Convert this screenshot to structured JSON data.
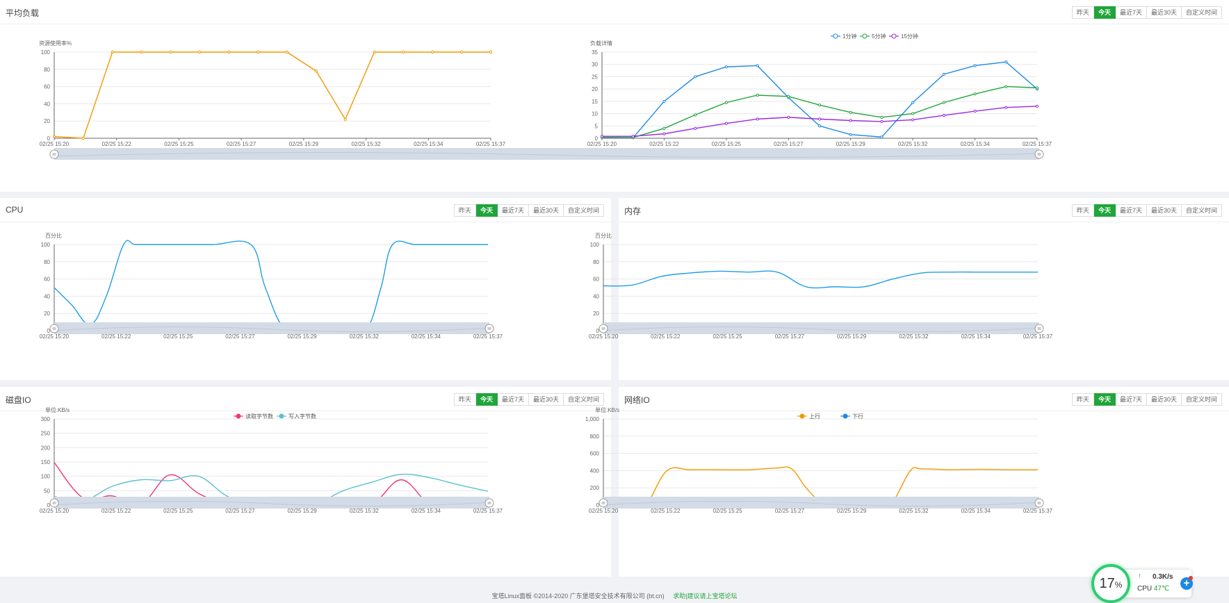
{
  "range_buttons": [
    "昨天",
    "今天",
    "最近7天",
    "最近30天",
    "自定义时间"
  ],
  "active_range": "今天",
  "times": [
    "02/25 15:20",
    "02/25 15:22",
    "02/25 15:25",
    "02/25 15:27",
    "02/25 15:29",
    "02/25 15:32",
    "02/25 15:34",
    "02/25 15:37"
  ],
  "panels": {
    "load": {
      "title": "平均负载"
    },
    "cpu": {
      "title": "CPU"
    },
    "mem": {
      "title": "内存"
    },
    "disk": {
      "title": "磁盘IO"
    },
    "net": {
      "title": "网络IO"
    }
  },
  "chart_data": [
    {
      "id": "load-resource",
      "type": "line",
      "ylabel": "资源使用率%",
      "ylim": [
        0,
        100
      ],
      "yticks": [
        0,
        20,
        40,
        60,
        80,
        100
      ],
      "x_ticks": [
        "02/25 15:20",
        "02/25 15:22",
        "02/25 15:25",
        "02/25 15:27",
        "02/25 15:29",
        "02/25 15:32",
        "02/25 15:34",
        "02/25 15:37"
      ],
      "smooth": false,
      "markers": true,
      "series": [
        {
          "color": "#f39800",
          "x": [
            0,
            1,
            2,
            3,
            4,
            5,
            6,
            7,
            8,
            9,
            10,
            11,
            12,
            13,
            14,
            15
          ],
          "values": [
            2,
            0,
            100,
            100,
            100,
            100,
            100,
            100,
            100,
            78,
            22,
            100,
            100,
            100,
            100,
            100
          ]
        }
      ],
      "x_max": 15
    },
    {
      "id": "load-detail",
      "type": "line",
      "ylabel": "负载详情",
      "ylim": [
        0,
        35
      ],
      "yticks": [
        0,
        5,
        10,
        15,
        20,
        25,
        30,
        35
      ],
      "x_ticks": [
        "02/25 15:20",
        "02/25 15:22",
        "02/25 15:25",
        "02/25 15:27",
        "02/25 15:29",
        "02/25 15:32",
        "02/25 15:34",
        "02/25 15:37"
      ],
      "smooth": false,
      "markers": true,
      "legend": [
        "1分钟",
        "5分钟",
        "15分钟"
      ],
      "series": [
        {
          "name": "1分钟",
          "color": "#1e88e5",
          "x": [
            0,
            1,
            2,
            3,
            4,
            5,
            6,
            7,
            8,
            9,
            10,
            11,
            12,
            13,
            14
          ],
          "values": [
            0.3,
            0.2,
            15,
            25,
            29,
            29.5,
            16.5,
            5,
            1.5,
            0.5,
            14.5,
            26,
            29.5,
            31,
            20
          ]
        },
        {
          "name": "5分钟",
          "color": "#20a53a",
          "x": [
            0,
            1,
            2,
            3,
            4,
            5,
            6,
            7,
            8,
            9,
            10,
            11,
            12,
            13,
            14
          ],
          "values": [
            0.3,
            0.3,
            4,
            9.5,
            14.5,
            17.5,
            17,
            13.5,
            10.5,
            8.5,
            10,
            14.5,
            18,
            21,
            20.5
          ]
        },
        {
          "name": "15分钟",
          "color": "#9c27e0",
          "x": [
            0,
            1,
            2,
            3,
            4,
            5,
            6,
            7,
            8,
            9,
            10,
            11,
            12,
            13,
            14
          ],
          "values": [
            0.8,
            0.8,
            1.8,
            4,
            6,
            7.8,
            8.5,
            7.8,
            7.2,
            6.8,
            7.5,
            9.3,
            11,
            12.5,
            13
          ]
        }
      ],
      "x_max": 14
    },
    {
      "id": "cpu",
      "type": "line",
      "ylabel": "百分比",
      "ylim": [
        0,
        100
      ],
      "yticks": [
        0,
        20,
        40,
        60,
        80,
        100
      ],
      "x_ticks": [
        "02/25 15:20",
        "02/25 15:22",
        "02/25 15:25",
        "02/25 15:27",
        "02/25 15:29",
        "02/25 15:32",
        "02/25 15:34",
        "02/25 15:37"
      ],
      "smooth": true,
      "markers": false,
      "series": [
        {
          "color": "#1e9ee5",
          "x": [
            0,
            0.6,
            1.25,
            1.8,
            2.4,
            2.8,
            3.5,
            4.5,
            5.5,
            6.8,
            7.3,
            8,
            9,
            10,
            10.8,
            11.3,
            11.7,
            12.5,
            13.5,
            15
          ],
          "values": [
            50,
            30,
            7,
            40,
            100,
            100,
            100,
            100,
            100,
            100,
            50,
            1,
            0.5,
            0.5,
            2,
            50,
            100,
            100,
            100,
            100
          ]
        }
      ],
      "x_max": 15
    },
    {
      "id": "mem",
      "type": "line",
      "ylabel": "百分比",
      "ylim": [
        0,
        100
      ],
      "yticks": [
        0,
        20,
        40,
        60,
        80,
        100
      ],
      "x_ticks": [
        "02/25 15:20",
        "02/25 15:22",
        "02/25 15:25",
        "02/25 15:27",
        "02/25 15:29",
        "02/25 15:32",
        "02/25 15:34",
        "02/25 15:37"
      ],
      "smooth": true,
      "markers": false,
      "series": [
        {
          "color": "#1e9ee5",
          "x": [
            0,
            1,
            2,
            3,
            4,
            5,
            6,
            7,
            8,
            9,
            10,
            11,
            12,
            13,
            14,
            15
          ],
          "values": [
            52,
            53,
            63,
            67,
            69,
            68,
            68,
            51,
            51,
            51,
            60,
            67,
            68,
            68,
            68,
            68
          ]
        }
      ],
      "x_max": 15
    },
    {
      "id": "disk",
      "type": "line",
      "ylabel": "单位:KB/s",
      "ylim": [
        0,
        300
      ],
      "yticks": [
        0,
        50,
        100,
        150,
        200,
        250,
        300
      ],
      "x_ticks": [
        "02/25 15:20",
        "02/25 15:22",
        "02/25 15:25",
        "02/25 15:27",
        "02/25 15:29",
        "02/25 15:32",
        "02/25 15:34",
        "02/25 15:37"
      ],
      "smooth": true,
      "markers": false,
      "legend": [
        "读取字节数",
        "写入字节数"
      ],
      "series": [
        {
          "name": "读取字节数",
          "color": "#f0357a",
          "x": [
            0,
            1,
            2,
            3,
            4,
            5,
            6,
            7,
            8,
            9,
            10,
            11,
            12,
            13,
            14,
            15
          ],
          "values": [
            148,
            25,
            32,
            3,
            105,
            40,
            3,
            2,
            2,
            2,
            5,
            3,
            88,
            3,
            3,
            15
          ]
        },
        {
          "name": "写入字节数",
          "color": "#5bc0d0",
          "x": [
            0,
            1,
            2,
            3,
            4,
            5,
            6,
            7,
            8,
            9,
            10,
            11,
            12,
            13,
            14,
            15
          ],
          "values": [
            30,
            15,
            65,
            88,
            85,
            100,
            30,
            5,
            3,
            3,
            50,
            80,
            107,
            95,
            70,
            48
          ]
        }
      ],
      "x_max": 15
    },
    {
      "id": "net",
      "type": "line",
      "ylabel": "单位:KB/s",
      "ylim": [
        0,
        1000
      ],
      "yticks": [
        0,
        200,
        400,
        600,
        800,
        1000
      ],
      "ytick_labels": [
        "0",
        "200",
        "400",
        "600",
        "800",
        "1,000"
      ],
      "x_ticks": [
        "02/25 15:20",
        "02/25 15:22",
        "02/25 15:25",
        "02/25 15:27",
        "02/25 15:29",
        "02/25 15:32",
        "02/25 15:34",
        "02/25 15:37"
      ],
      "smooth": true,
      "markers": false,
      "legend": [
        "上行",
        "下行"
      ],
      "series": [
        {
          "name": "上行",
          "color": "#f39800",
          "x": [
            0,
            1,
            1.5,
            2.2,
            3,
            4,
            5,
            6,
            6.5,
            7,
            7.6,
            8,
            9,
            9.6,
            10,
            10.6,
            11,
            12,
            13,
            14,
            15
          ],
          "values": [
            5,
            5,
            20,
            400,
            410,
            410,
            410,
            430,
            420,
            200,
            5,
            5,
            5,
            5,
            40,
            400,
            420,
            410,
            415,
            410,
            410
          ]
        },
        {
          "name": "下行",
          "color": "#1e88e5",
          "x": [
            0,
            2,
            4,
            6,
            7,
            8,
            10,
            12,
            15
          ],
          "values": [
            5,
            20,
            25,
            25,
            15,
            5,
            25,
            30,
            30
          ]
        }
      ],
      "x_max": 15
    }
  ],
  "footer": {
    "copyright": "宝塔Linux面板 ©2014-2020 广东堡塔安全技术有限公司 (bt.cn)",
    "forum_link": "求助|建议请上宝塔论坛"
  },
  "monitor": {
    "cpu_percent": "17",
    "percent_sign": "%",
    "net_speed": "0.3K/s",
    "cpu_label": "CPU",
    "cpu_temp": "47℃"
  }
}
